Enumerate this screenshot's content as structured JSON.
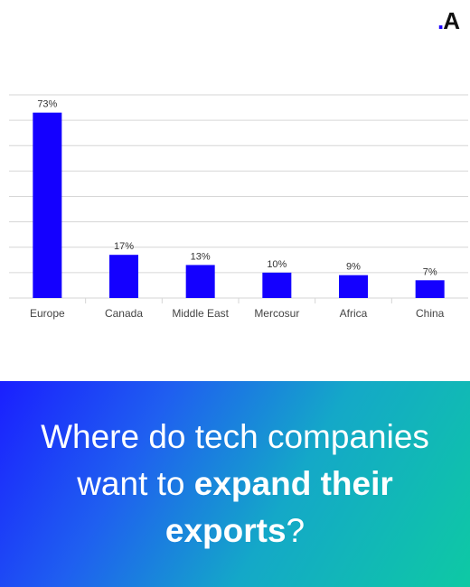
{
  "logo": {
    "dot": ".",
    "letter": "A",
    "accent_color": "#1a00ff"
  },
  "headline": {
    "part1": "Where do tech companies want to ",
    "bold1": "expand their",
    "space": " ",
    "bold2": "exports",
    "end": "?"
  },
  "banner_gradient": [
    "#1a1fff",
    "#14a8c8",
    "#0ec9a4"
  ],
  "chart_data": {
    "type": "bar",
    "categories": [
      "Europe",
      "Canada",
      "Middle East",
      "Mercosur",
      "Africa",
      "China"
    ],
    "values": [
      73,
      17,
      13,
      10,
      9,
      7
    ],
    "value_labels": [
      "73%",
      "17%",
      "13%",
      "10%",
      "9%",
      "7%"
    ],
    "ylim": [
      0,
      80
    ],
    "grid": true,
    "bar_color": "#1400ff",
    "title": "",
    "xlabel": "",
    "ylabel": ""
  }
}
